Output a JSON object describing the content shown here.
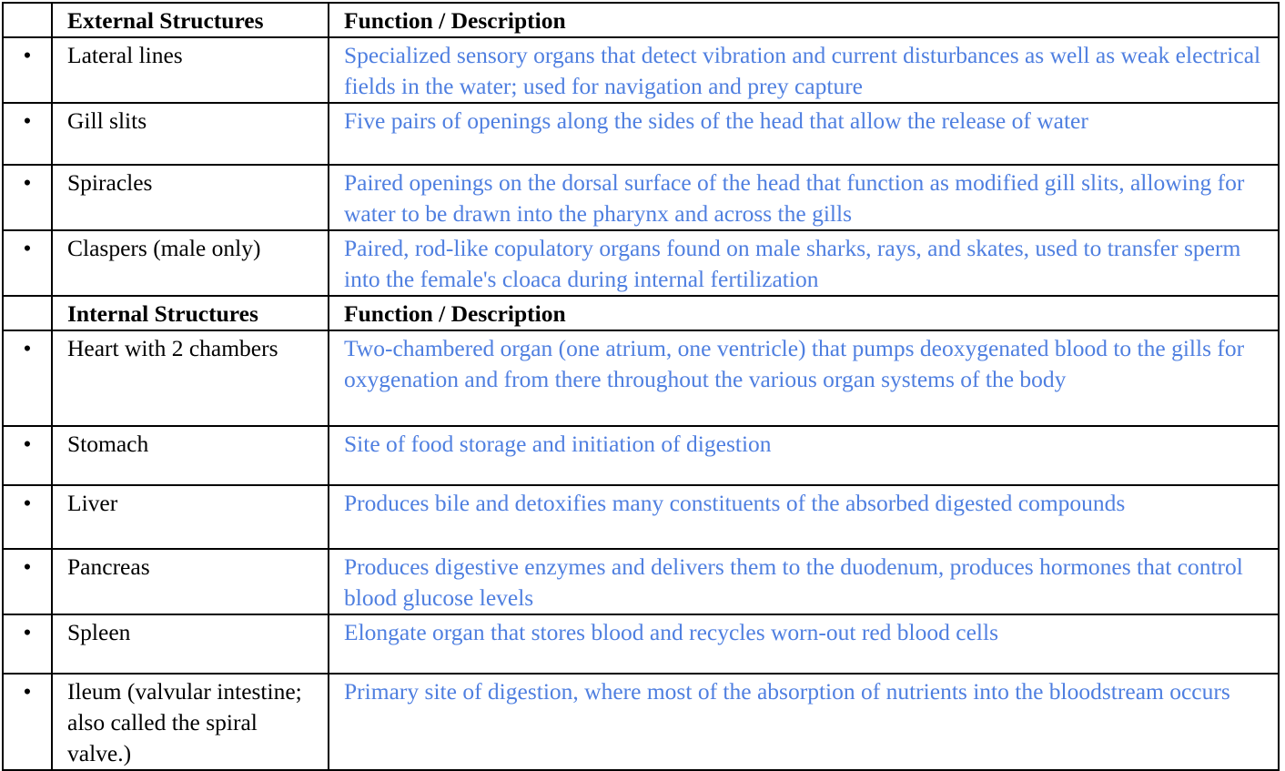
{
  "bullet": "•",
  "colors": {
    "description_text": "#4f7fe0",
    "text": "#000000"
  },
  "external": {
    "header": {
      "structure": "External Structures",
      "function": "Function / Description"
    },
    "rows": [
      {
        "structure": "Lateral lines",
        "description": "Specialized sensory organs that detect vibration and current disturbances as well as weak electrical fields in the water; used for navigation and prey capture"
      },
      {
        "structure": "Gill slits",
        "description": "Five pairs of openings along the sides of the head that allow the release of water"
      },
      {
        "structure": "Spiracles",
        "description": "Paired openings on the dorsal surface of the head that function as modified gill slits, allowing for water to be drawn into the pharynx and across the gills"
      },
      {
        "structure": "Claspers (male only)",
        "description": "Paired, rod-like copulatory organs found on male sharks, rays, and skates, used to transfer sperm into the female's cloaca during internal fertilization"
      }
    ]
  },
  "internal": {
    "header": {
      "structure": "Internal Structures",
      "function": "Function / Description"
    },
    "rows": [
      {
        "structure": "Heart with 2 chambers",
        "description": "Two-chambered organ (one atrium, one ventricle) that pumps deoxygenated blood to the gills for oxygenation and from there throughout the various organ systems of the body"
      },
      {
        "structure": "Stomach",
        "description": "Site of food storage and initiation of digestion"
      },
      {
        "structure": "Liver",
        "description": "Produces bile and detoxifies many constituents of the absorbed digested compounds"
      },
      {
        "structure": "Pancreas",
        "description": "Produces digestive enzymes and delivers them to the duodenum, produces hormones that control blood glucose levels"
      },
      {
        "structure": "Spleen",
        "description": "Elongate organ that stores blood and recycles worn-out red blood cells"
      },
      {
        "structure": "Ileum (valvular intestine; also called the spiral valve.)",
        "description": "Primary site of digestion, where most of the absorption of nutrients into the bloodstream occurs"
      }
    ]
  }
}
